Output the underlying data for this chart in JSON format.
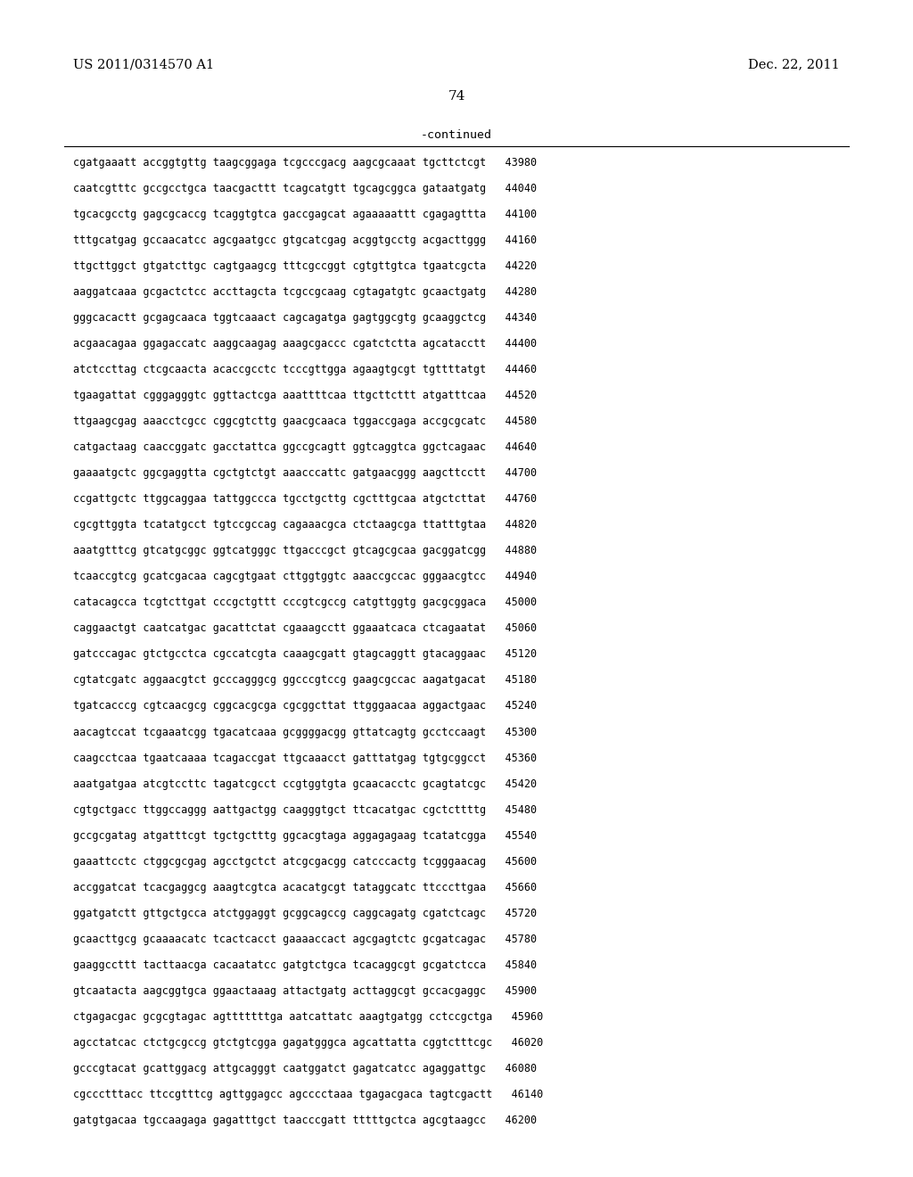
{
  "header_left": "US 2011/0314570 A1",
  "header_right": "Dec. 22, 2011",
  "page_number": "74",
  "continued_label": "-continued",
  "background_color": "#ffffff",
  "text_color": "#000000",
  "font_size_header": 10.5,
  "font_size_page": 11,
  "font_size_body": 8.5,
  "font_size_continued": 9.5,
  "lines": [
    "cgatgaaatt accggtgttg taagcggaga tcgcccgacg aagcgcaaat tgcttctcgt   43980",
    "caatcgtttc gccgcctgca taacgacttt tcagcatgtt tgcagcggca gataatgatg   44040",
    "tgcacgcctg gagcgcaccg tcaggtgtca gaccgagcat agaaaaattt cgagagttta   44100",
    "tttgcatgag gccaacatcc agcgaatgcc gtgcatcgag acggtgcctg acgacttggg   44160",
    "ttgcttggct gtgatcttgc cagtgaagcg tttcgccggt cgtgttgtca tgaatcgcta   44220",
    "aaggatcaaa gcgactctcc accttagcta tcgccgcaag cgtagatgtc gcaactgatg   44280",
    "gggcacactt gcgagcaaca tggtcaaact cagcagatga gagtggcgtg gcaaggctcg   44340",
    "acgaacagaa ggagaccatc aaggcaagag aaagcgaccc cgatctctta agcatacctt   44400",
    "atctccttag ctcgcaacta acaccgcctc tcccgttgga agaagtgcgt tgttttatgt   44460",
    "tgaagattat cgggagggtc ggttactcga aaattttcaa ttgcttcttt atgatttcaa   44520",
    "ttgaagcgag aaacctcgcc cggcgtcttg gaacgcaaca tggaccgaga accgcgcatc   44580",
    "catgactaag caaccggatc gacctattca ggccgcagtt ggtcaggtca ggctcagaac   44640",
    "gaaaatgctc ggcgaggtta cgctgtctgt aaacccattc gatgaacggg aagcttcctt   44700",
    "ccgattgctc ttggcaggaa tattggccca tgcctgcttg cgctttgcaa atgctcttat   44760",
    "cgcgttggta tcatatgcct tgtccgccag cagaaacgca ctctaagcga ttatttgtaa   44820",
    "aaatgtttcg gtcatgcggc ggtcatgggc ttgacccgct gtcagcgcaa gacggatcgg   44880",
    "tcaaccgtcg gcatcgacaa cagcgtgaat cttggtggtc aaaccgccac gggaacgtcc   44940",
    "catacagcca tcgtcttgat cccgctgttt cccgtcgccg catgttggtg gacgcggaca   45000",
    "caggaactgt caatcatgac gacattctat cgaaagcctt ggaaatcaca ctcagaatat   45060",
    "gatcccagac gtctgcctca cgccatcgta caaagcgatt gtagcaggtt gtacaggaac   45120",
    "cgtatcgatc aggaacgtct gcccagggcg ggcccgtccg gaagcgccac aagatgacat   45180",
    "tgatcacccg cgtcaacgcg cggcacgcga cgcggcttat ttgggaacaa aggactgaac   45240",
    "aacagtccat tcgaaatcgg tgacatcaaa gcggggacgg gttatcagtg gcctccaagt   45300",
    "caagcctcaa tgaatcaaaa tcagaccgat ttgcaaacct gatttatgag tgtgcggcct   45360",
    "aaatgatgaa atcgtccttc tagatcgcct ccgtggtgta gcaacacctc gcagtatcgc   45420",
    "cgtgctgacc ttggccaggg aattgactgg caagggtgct ttcacatgac cgctcttttg   45480",
    "gccgcgatag atgatttcgt tgctgctttg ggcacgtaga aggagagaag tcatatcgga   45540",
    "gaaattcctc ctggcgcgag agcctgctct atcgcgacgg catcccactg tcgggaacag   45600",
    "accggatcat tcacgaggcg aaagtcgtca acacatgcgt tataggcatc ttcccttgaa   45660",
    "ggatgatctt gttgctgcca atctggaggt gcggcagccg caggcagatg cgatctcagc   45720",
    "gcaacttgcg gcaaaacatc tcactcacct gaaaaccact agcgagtctc gcgatcagac   45780",
    "gaaggccttt tacttaacga cacaatatcc gatgtctgca tcacaggcgt gcgatctcca   45840",
    "gtcaatacta aagcggtgca ggaactaaag attactgatg acttaggcgt gccacgaggc   45900",
    "ctgagacgac gcgcgtagac agtttttttga aatcattatc aaagtgatgg cctccgctga   45960",
    "agcctatcac ctctgcgccg gtctgtcgga gagatgggca agcattatta cggtctttcgc   46020",
    "gcccgtacat gcattggacg attgcagggt caatggatct gagatcatcc agaggattgc   46080",
    "cgccctttacc ttccgtttcg agttggagcc agcccctaaa tgagacgaca tagtcgactt   46140",
    "gatgtgacaa tgccaagaga gagatttgct taacccgatt tttttgctca agcgtaagcc   46200"
  ]
}
